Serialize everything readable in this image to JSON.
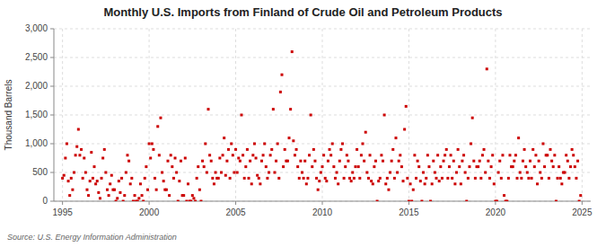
{
  "chart_data": {
    "type": "scatter",
    "title": "Monthly U.S. Imports from Finland of Crude Oil and Petroleum Products",
    "y_label": "Thousand Barrels",
    "source": "Source: U.S. Energy Information Administration",
    "color": "#cc0000",
    "marker": "square",
    "grid": true,
    "xlim": [
      1994.5,
      2025.5
    ],
    "ylim": [
      0,
      3000
    ],
    "xticks": [
      1995,
      2000,
      2005,
      2010,
      2015,
      2020,
      2025
    ],
    "yticks": [
      0,
      500,
      {
        "value": 1000,
        "label": "1,000"
      },
      {
        "value": 1500,
        "label": "1,500"
      },
      {
        "value": 2000,
        "label": "2,000"
      },
      {
        "value": 2500,
        "label": "2,500"
      },
      {
        "value": 3000,
        "label": "3,000"
      }
    ],
    "x": [
      1995.0,
      1995.083,
      1995.167,
      1995.25,
      1995.333,
      1995.417,
      1995.5,
      1995.583,
      1995.667,
      1995.75,
      1995.833,
      1995.917,
      1996.0,
      1996.083,
      1996.167,
      1996.25,
      1996.333,
      1996.417,
      1996.5,
      1996.583,
      1996.667,
      1996.75,
      1996.833,
      1996.917,
      1997.0,
      1997.083,
      1997.167,
      1997.25,
      1997.333,
      1997.417,
      1997.5,
      1997.583,
      1997.667,
      1997.75,
      1997.833,
      1997.917,
      1998.0,
      1998.083,
      1998.167,
      1998.25,
      1998.333,
      1998.417,
      1998.5,
      1998.583,
      1998.667,
      1998.75,
      1998.833,
      1998.917,
      1999.0,
      1999.083,
      1999.167,
      1999.25,
      1999.333,
      1999.417,
      1999.5,
      1999.583,
      1999.667,
      1999.75,
      1999.833,
      1999.917,
      2000.0,
      2000.083,
      2000.167,
      2000.25,
      2000.333,
      2000.417,
      2000.5,
      2000.583,
      2000.667,
      2000.75,
      2000.833,
      2000.917,
      2001.0,
      2001.083,
      2001.167,
      2001.25,
      2001.333,
      2001.417,
      2001.5,
      2001.583,
      2001.667,
      2001.75,
      2001.833,
      2001.917,
      2002.0,
      2002.083,
      2002.167,
      2002.25,
      2002.333,
      2002.417,
      2002.5,
      2002.583,
      2002.667,
      2002.75,
      2002.833,
      2002.917,
      2003.0,
      2003.083,
      2003.167,
      2003.25,
      2003.333,
      2003.417,
      2003.5,
      2003.583,
      2003.667,
      2003.75,
      2003.833,
      2003.917,
      2004.0,
      2004.083,
      2004.167,
      2004.25,
      2004.333,
      2004.417,
      2004.5,
      2004.583,
      2004.667,
      2004.75,
      2004.833,
      2004.917,
      2005.0,
      2005.083,
      2005.167,
      2005.25,
      2005.333,
      2005.417,
      2005.5,
      2005.583,
      2005.667,
      2005.75,
      2005.833,
      2005.917,
      2006.0,
      2006.083,
      2006.167,
      2006.25,
      2006.333,
      2006.417,
      2006.5,
      2006.583,
      2006.667,
      2006.75,
      2006.833,
      2006.917,
      2007.0,
      2007.083,
      2007.167,
      2007.25,
      2007.333,
      2007.417,
      2007.5,
      2007.583,
      2007.667,
      2007.75,
      2007.833,
      2007.917,
      2008.0,
      2008.083,
      2008.167,
      2008.25,
      2008.333,
      2008.417,
      2008.5,
      2008.583,
      2008.667,
      2008.75,
      2008.833,
      2008.917,
      2009.0,
      2009.083,
      2009.167,
      2009.25,
      2009.333,
      2009.417,
      2009.5,
      2009.583,
      2009.667,
      2009.75,
      2009.833,
      2009.917,
      2010.0,
      2010.083,
      2010.167,
      2010.25,
      2010.333,
      2010.417,
      2010.5,
      2010.583,
      2010.667,
      2010.75,
      2010.833,
      2010.917,
      2011.0,
      2011.083,
      2011.167,
      2011.25,
      2011.333,
      2011.417,
      2011.5,
      2011.583,
      2011.667,
      2011.75,
      2011.833,
      2011.917,
      2012.0,
      2012.083,
      2012.167,
      2012.25,
      2012.333,
      2012.417,
      2012.5,
      2012.583,
      2012.667,
      2012.75,
      2012.833,
      2012.917,
      2013.0,
      2013.083,
      2013.167,
      2013.25,
      2013.333,
      2013.417,
      2013.5,
      2013.583,
      2013.667,
      2013.75,
      2013.833,
      2013.917,
      2014.0,
      2014.083,
      2014.167,
      2014.25,
      2014.333,
      2014.417,
      2014.5,
      2014.583,
      2014.667,
      2014.75,
      2014.833,
      2014.917,
      2015.0,
      2015.083,
      2015.167,
      2015.25,
      2015.333,
      2015.417,
      2015.5,
      2015.583,
      2015.667,
      2015.75,
      2015.833,
      2015.917,
      2016.0,
      2016.083,
      2016.167,
      2016.25,
      2016.333,
      2016.417,
      2016.5,
      2016.583,
      2016.667,
      2016.75,
      2016.833,
      2016.917,
      2017.0,
      2017.083,
      2017.167,
      2017.25,
      2017.333,
      2017.417,
      2017.5,
      2017.583,
      2017.667,
      2017.75,
      2017.833,
      2017.917,
      2018.0,
      2018.083,
      2018.167,
      2018.25,
      2018.333,
      2018.417,
      2018.5,
      2018.583,
      2018.667,
      2018.75,
      2018.833,
      2018.917,
      2019.0,
      2019.083,
      2019.167,
      2019.25,
      2019.333,
      2019.417,
      2019.5,
      2019.583,
      2019.667,
      2019.75,
      2019.833,
      2019.917,
      2020.0,
      2020.083,
      2020.167,
      2020.25,
      2020.333,
      2020.417,
      2020.5,
      2020.583,
      2020.667,
      2020.75,
      2020.833,
      2020.917,
      2021.0,
      2021.083,
      2021.167,
      2021.25,
      2021.333,
      2021.417,
      2021.5,
      2021.583,
      2021.667,
      2021.75,
      2021.833,
      2021.917,
      2022.0,
      2022.083,
      2022.167,
      2022.25,
      2022.333,
      2022.417,
      2022.5,
      2022.583,
      2022.667,
      2022.75,
      2022.833,
      2022.917,
      2023.0,
      2023.083,
      2023.167,
      2023.25,
      2023.333,
      2023.417,
      2023.5,
      2023.583,
      2023.667,
      2023.75,
      2023.833,
      2023.917,
      2024.0,
      2024.083,
      2024.167,
      2024.25,
      2024.333,
      2024.417,
      2024.5,
      2024.583,
      2024.667,
      2024.75,
      2024.833,
      2024.917
    ],
    "values": [
      400,
      450,
      750,
      1000,
      350,
      100,
      400,
      200,
      500,
      800,
      950,
      1250,
      800,
      900,
      400,
      750,
      500,
      200,
      100,
      350,
      850,
      400,
      600,
      300,
      350,
      150,
      50,
      400,
      750,
      900,
      500,
      200,
      100,
      300,
      450,
      200,
      200,
      0,
      50,
      350,
      150,
      400,
      0,
      100,
      500,
      800,
      700,
      300,
      400,
      0,
      100,
      0,
      0,
      50,
      300,
      100,
      0,
      400,
      600,
      200,
      1000,
      750,
      1000,
      900,
      400,
      200,
      1300,
      800,
      1450,
      500,
      350,
      200,
      200,
      700,
      100,
      800,
      600,
      400,
      750,
      500,
      0,
      350,
      700,
      100,
      100,
      750,
      0,
      300,
      0,
      0,
      100,
      50,
      0,
      400,
      600,
      200,
      0,
      700,
      600,
      1000,
      500,
      1600,
      800,
      700,
      400,
      300,
      500,
      400,
      400,
      750,
      500,
      800,
      1100,
      450,
      700,
      900,
      400,
      1000,
      800,
      500,
      900,
      500,
      750,
      700,
      1500,
      800,
      400,
      600,
      900,
      400,
      700,
      300,
      800,
      1000,
      750,
      450,
      400,
      300,
      700,
      800,
      1000,
      600,
      400,
      500,
      800,
      900,
      1600,
      500,
      700,
      1000,
      400,
      1900,
      2200,
      600,
      900,
      700,
      700,
      1100,
      1600,
      2600,
      1050,
      800,
      900,
      600,
      400,
      700,
      500,
      400,
      700,
      300,
      400,
      800,
      1500,
      600,
      900,
      700,
      400,
      200,
      350,
      500,
      600,
      800,
      400,
      350,
      700,
      900,
      800,
      1000,
      600,
      400,
      500,
      300,
      700,
      900,
      1000,
      400,
      600,
      800,
      700,
      400,
      350,
      500,
      400,
      600,
      900,
      600,
      400,
      800,
      1000,
      700,
      1200,
      500,
      400,
      800,
      350,
      300,
      600,
      700,
      0,
      350,
      400,
      800,
      700,
      1500,
      300,
      400,
      200,
      500,
      700,
      900,
      400,
      1100,
      500,
      700,
      800,
      600,
      350,
      1250,
      1650,
      400,
      0,
      300,
      0,
      200,
      800,
      400,
      700,
      600,
      350,
      0,
      500,
      300,
      400,
      800,
      600,
      0,
      300,
      700,
      500,
      400,
      800,
      350,
      600,
      400,
      700,
      800,
      900,
      400,
      600,
      800,
      400,
      700,
      300,
      500,
      900,
      600,
      300,
      700,
      800,
      500,
      0,
      400,
      600,
      1000,
      1450,
      700,
      400,
      600,
      600,
      700,
      400,
      800,
      900,
      500,
      2300,
      700,
      400,
      600,
      800,
      300,
      0,
      0,
      500,
      700,
      400,
      800,
      100,
      0,
      0,
      400,
      800,
      600,
      600,
      700,
      800,
      400,
      1100,
      500,
      400,
      700,
      900,
      600,
      500,
      400,
      700,
      400,
      900,
      600,
      800,
      300,
      700,
      500,
      400,
      1000,
      600,
      800,
      800,
      400,
      900,
      700,
      600,
      800,
      0,
      400,
      600,
      400,
      300,
      500,
      500,
      800,
      700,
      400,
      600,
      900,
      800,
      600,
      400,
      700,
      0,
      100
    ]
  }
}
